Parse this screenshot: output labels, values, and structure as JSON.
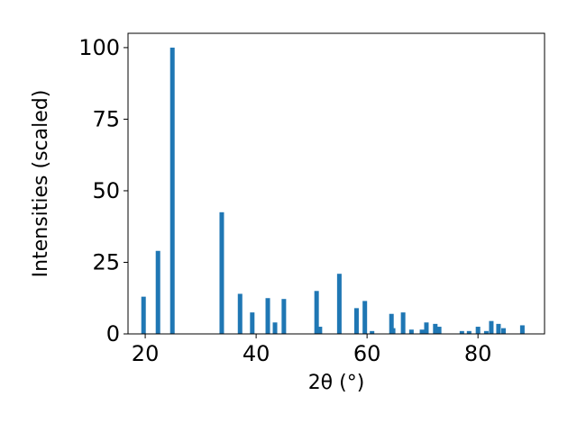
{
  "chart_data": {
    "type": "bar",
    "xlabel": "2θ (°)",
    "ylabel": "Intensities (scaled)",
    "x": [
      19.7,
      22.3,
      24.9,
      33.8,
      37.1,
      39.3,
      42.1,
      43.4,
      45.0,
      50.9,
      51.5,
      55.0,
      58.1,
      59.6,
      60.9,
      64.4,
      64.7,
      66.5,
      68.0,
      69.9,
      70.7,
      72.3,
      73.0,
      77.1,
      78.4,
      80.0,
      81.5,
      82.4,
      83.7,
      84.6,
      88.0
    ],
    "values": [
      13,
      29,
      100,
      42.5,
      14,
      7.5,
      12.5,
      4,
      12.2,
      15,
      2.5,
      21,
      9,
      11.5,
      1,
      7,
      2,
      7.5,
      1.5,
      1.5,
      4,
      3.5,
      2.5,
      1,
      1,
      2.5,
      1,
      4.5,
      3.5,
      2,
      3
    ],
    "color": "#1f77b4",
    "xlim": [
      16.9,
      92.0
    ],
    "xticks": [
      20,
      40,
      60,
      80
    ],
    "ylim": [
      0,
      105
    ],
    "yticks": [
      0,
      25,
      50,
      75,
      100
    ]
  }
}
